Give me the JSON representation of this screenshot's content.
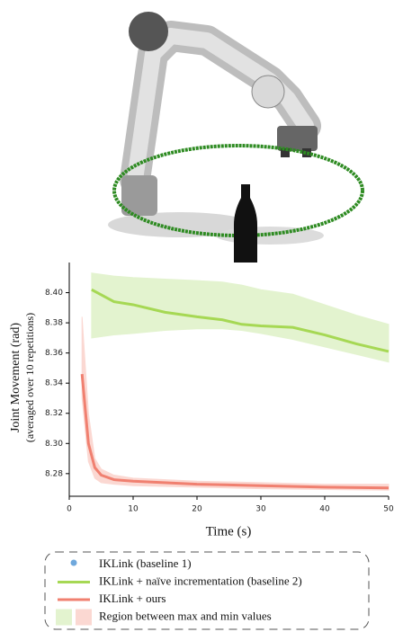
{
  "chart_data": {
    "type": "line",
    "xlabel": "Time (s)",
    "ylabel": "Joint Movement (rad)",
    "ylabel_sub": "(averaged over 10 repetitions)",
    "xlim": [
      0,
      50
    ],
    "xticks": [
      0,
      10,
      20,
      30,
      40,
      50
    ],
    "ylim": [
      8.265,
      8.42
    ],
    "yticks": [
      8.28,
      {
        "value": 8.3,
        "label": "8.30"
      },
      8.32,
      8.34,
      8.36,
      8.38,
      {
        "value": 8.4,
        "label": "8.40"
      }
    ],
    "region_legend": "Region between max and min values",
    "series": [
      {
        "name": "IKLink (baseline 1)",
        "type": "scatter",
        "color": "#6fa8dc",
        "x": [
          24.5
        ],
        "values": [
          8.381
        ]
      },
      {
        "name": "IKLink + naïve incrementation (baseline 2)",
        "type": "line",
        "color": "#a6d854",
        "band_color": "#e3f3cf",
        "x": [
          3.5,
          7,
          10,
          15,
          20,
          24,
          27,
          30,
          35,
          40,
          45,
          50
        ],
        "values": [
          8.402,
          8.394,
          8.392,
          8.387,
          8.384,
          8.382,
          8.379,
          8.378,
          8.377,
          8.372,
          8.366,
          8.361
        ],
        "max": [
          8.413,
          8.411,
          8.41,
          8.409,
          8.408,
          8.407,
          8.405,
          8.402,
          8.399,
          8.392,
          8.385,
          8.379
        ],
        "min": [
          8.37,
          8.372,
          8.373,
          8.375,
          8.376,
          8.376,
          8.375,
          8.373,
          8.369,
          8.364,
          8.359,
          8.354
        ]
      },
      {
        "name": "IKLink + ours",
        "type": "line",
        "color": "#f08070",
        "band_color": "#fbd8d2",
        "x": [
          2,
          3,
          4,
          5,
          7,
          10,
          20,
          30,
          40,
          50
        ],
        "values": [
          8.346,
          8.3,
          8.284,
          8.279,
          8.276,
          8.275,
          8.273,
          8.272,
          8.271,
          8.2705
        ],
        "max": [
          8.384,
          8.32,
          8.29,
          8.283,
          8.279,
          8.277,
          8.275,
          8.274,
          8.273,
          8.273
        ],
        "min": [
          8.33,
          8.288,
          8.277,
          8.274,
          8.273,
          8.272,
          8.271,
          8.27,
          8.2695,
          8.269
        ]
      }
    ]
  }
}
